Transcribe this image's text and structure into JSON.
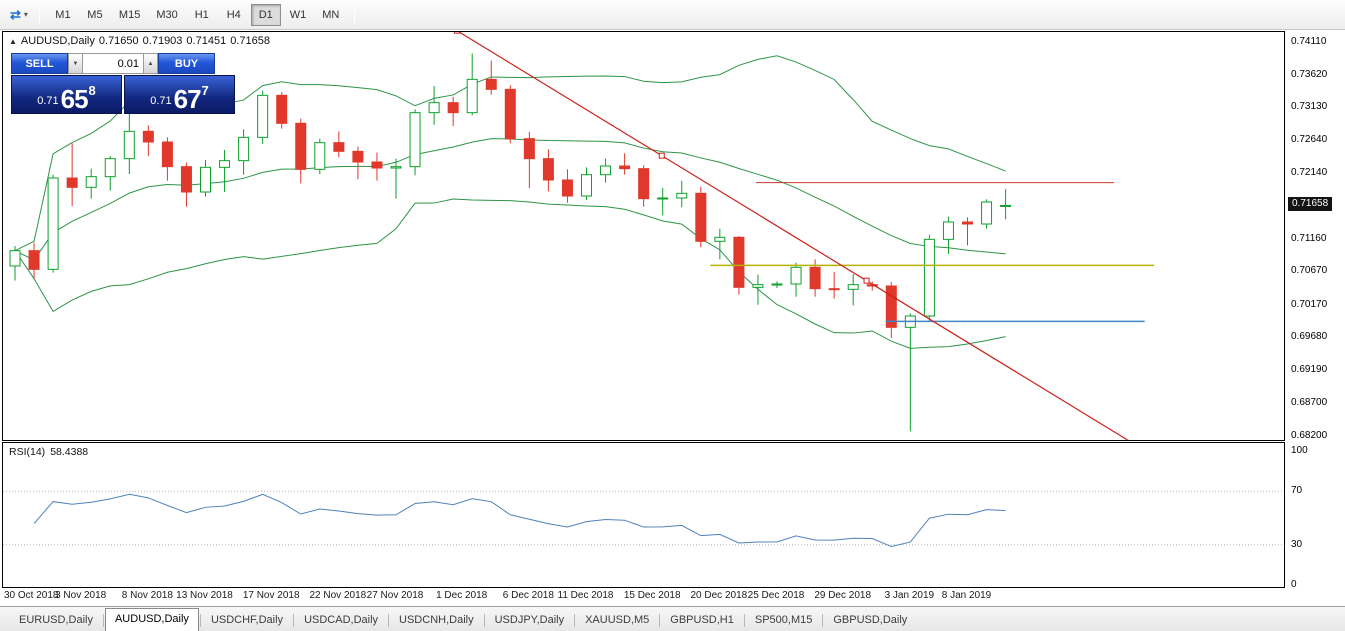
{
  "toolbar": {
    "timeframes": [
      {
        "label": "M1",
        "active": false
      },
      {
        "label": "M5",
        "active": false
      },
      {
        "label": "M15",
        "active": false
      },
      {
        "label": "M30",
        "active": false
      },
      {
        "label": "H1",
        "active": false
      },
      {
        "label": "H4",
        "active": false
      },
      {
        "label": "D1",
        "active": true
      },
      {
        "label": "W1",
        "active": false
      },
      {
        "label": "MN",
        "active": false
      }
    ]
  },
  "chart": {
    "title": {
      "symbol": "AUDUSD,Daily",
      "open": "0.71650",
      "high": "0.71903",
      "low": "0.71451",
      "close": "0.71658"
    },
    "trade_panel": {
      "sell_label": "SELL",
      "buy_label": "BUY",
      "volume": "0.01",
      "sell_price": {
        "prefix": "0.71",
        "big": "65",
        "sup": "8"
      },
      "buy_price": {
        "prefix": "0.71",
        "big": "67",
        "sup": "7"
      }
    },
    "price_badge": "0.71658",
    "scale_labels": [
      "0.74110",
      "0.73620",
      "0.73130",
      "0.72640",
      "0.72140",
      "0.71650",
      "0.71160",
      "0.70670",
      "0.70170",
      "0.69680",
      "0.69190",
      "0.68700",
      "0.68200"
    ]
  },
  "rsi": {
    "label": "RSI(14)",
    "value": "58.4388",
    "scale": [
      "100",
      "70",
      "30",
      "0"
    ]
  },
  "tabs": [
    {
      "label": "EURUSD,Daily",
      "active": false
    },
    {
      "label": "AUDUSD,Daily",
      "active": true
    },
    {
      "label": "USDCHF,Daily",
      "active": false
    },
    {
      "label": "USDCAD,Daily",
      "active": false
    },
    {
      "label": "USDCNH,Daily",
      "active": false
    },
    {
      "label": "USDJPY,Daily",
      "active": false
    },
    {
      "label": "XAUUSD,M5",
      "active": false
    },
    {
      "label": "GBPUSD,H1",
      "active": false
    },
    {
      "label": "SP500,M15",
      "active": false
    },
    {
      "label": "GBPUSD,Daily",
      "active": false
    }
  ],
  "chart_data": {
    "type": "candlestick",
    "title": "AUDUSD,Daily",
    "ylim": [
      0.682,
      0.7411
    ],
    "last_price": 0.71658,
    "colors": {
      "up": "#0ca02c",
      "down": "#e0382a",
      "bollinger": "#2e9448",
      "rsi": "#4f81bd"
    },
    "candles": {
      "columns": [
        "date",
        "open",
        "high",
        "low",
        "close"
      ],
      "rows": [
        [
          "30 Oct 2018",
          0.7075,
          0.7105,
          0.7053,
          0.7098
        ],
        [
          "31 Oct 2018",
          0.7098,
          0.711,
          0.7056,
          0.707
        ],
        [
          "1 Nov 2018",
          0.707,
          0.7212,
          0.7065,
          0.7207
        ],
        [
          "2 Nov 2018",
          0.7207,
          0.7259,
          0.7165,
          0.7193
        ],
        [
          "5 Nov 2018",
          0.7193,
          0.7221,
          0.7176,
          0.7209
        ],
        [
          "6 Nov 2018",
          0.7209,
          0.724,
          0.7188,
          0.7236
        ],
        [
          "7 Nov 2018",
          0.7236,
          0.7303,
          0.7213,
          0.7277
        ],
        [
          "8 Nov 2018",
          0.7277,
          0.7286,
          0.724,
          0.7261
        ],
        [
          "9 Nov 2018",
          0.7261,
          0.7268,
          0.7203,
          0.7224
        ],
        [
          "12 Nov 2018",
          0.7224,
          0.723,
          0.7164,
          0.7186
        ],
        [
          "13 Nov 2018",
          0.7186,
          0.7234,
          0.7179,
          0.7223
        ],
        [
          "14 Nov 2018",
          0.7223,
          0.7249,
          0.7186,
          0.7233
        ],
        [
          "15 Nov 2018",
          0.7233,
          0.728,
          0.7212,
          0.7268
        ],
        [
          "16 Nov 2018",
          0.7268,
          0.7338,
          0.7258,
          0.7331
        ],
        [
          "19 Nov 2018",
          0.7331,
          0.7336,
          0.7281,
          0.7289
        ],
        [
          "20 Nov 2018",
          0.7289,
          0.7296,
          0.7199,
          0.722
        ],
        [
          "21 Nov 2018",
          0.722,
          0.7266,
          0.7213,
          0.726
        ],
        [
          "22 Nov 2018",
          0.726,
          0.7277,
          0.7238,
          0.7247
        ],
        [
          "23 Nov 2018",
          0.7247,
          0.7254,
          0.7205,
          0.7231
        ],
        [
          "26 Nov 2018",
          0.7231,
          0.7245,
          0.7203,
          0.7222
        ],
        [
          "27 Nov 2018",
          0.7222,
          0.7236,
          0.7176,
          0.7224
        ],
        [
          "28 Nov 2018",
          0.7224,
          0.731,
          0.7211,
          0.7305
        ],
        [
          "29 Nov 2018",
          0.7305,
          0.7345,
          0.7287,
          0.732
        ],
        [
          "30 Nov 2018",
          0.732,
          0.7329,
          0.7285,
          0.7305
        ],
        [
          "3 Dec 2018",
          0.7305,
          0.7394,
          0.7301,
          0.7355
        ],
        [
          "4 Dec 2018",
          0.7355,
          0.7383,
          0.7332,
          0.734
        ],
        [
          "5 Dec 2018",
          0.734,
          0.7346,
          0.7259,
          0.7266
        ],
        [
          "6 Dec 2018",
          0.7266,
          0.7276,
          0.7192,
          0.7236
        ],
        [
          "7 Dec 2018",
          0.7236,
          0.725,
          0.7187,
          0.7204
        ],
        [
          "10 Dec 2018",
          0.7204,
          0.722,
          0.717,
          0.718
        ],
        [
          "11 Dec 2018",
          0.718,
          0.7223,
          0.7174,
          0.7212
        ],
        [
          "12 Dec 2018",
          0.7212,
          0.7236,
          0.72,
          0.7225
        ],
        [
          "13 Dec 2018",
          0.7225,
          0.7244,
          0.7212,
          0.7221
        ],
        [
          "14 Dec 2018",
          0.7221,
          0.7226,
          0.7164,
          0.7176
        ],
        [
          "17 Dec 2018",
          0.7176,
          0.7192,
          0.7151,
          0.7177
        ],
        [
          "18 Dec 2018",
          0.7177,
          0.7203,
          0.7163,
          0.7184
        ],
        [
          "19 Dec 2018",
          0.7184,
          0.7194,
          0.7103,
          0.7112
        ],
        [
          "20 Dec 2018",
          0.7112,
          0.7131,
          0.7085,
          0.7118
        ],
        [
          "21 Dec 2018",
          0.7118,
          0.712,
          0.7032,
          0.7043
        ],
        [
          "24 Dec 2018",
          0.7043,
          0.7062,
          0.7017,
          0.7047
        ],
        [
          "25 Dec 2018",
          0.7047,
          0.7052,
          0.7042,
          0.7048
        ],
        [
          "26 Dec 2018",
          0.7048,
          0.708,
          0.7029,
          0.7073
        ],
        [
          "27 Dec 2018",
          0.7073,
          0.7085,
          0.7029,
          0.7041
        ],
        [
          "28 Dec 2018",
          0.7041,
          0.7066,
          0.7026,
          0.704
        ],
        [
          "31 Dec 2018",
          0.704,
          0.7063,
          0.7016,
          0.7047
        ],
        [
          "1 Jan 2019",
          0.7047,
          0.7052,
          0.7038,
          0.7045
        ],
        [
          "2 Jan 2019",
          0.7045,
          0.7051,
          0.6967,
          0.6983
        ],
        [
          "3 Jan 2019",
          0.6983,
          0.7004,
          0.6827,
          0.7
        ],
        [
          "4 Jan 2019",
          0.7,
          0.7122,
          0.6993,
          0.7115
        ],
        [
          "7 Jan 2019",
          0.7115,
          0.7149,
          0.7093,
          0.7141
        ],
        [
          "8 Jan 2019",
          0.7141,
          0.7148,
          0.7106,
          0.7138
        ],
        [
          "9 Jan 2019",
          0.7138,
          0.7175,
          0.7131,
          0.7171
        ],
        [
          "10 Jan 2019",
          0.7165,
          0.71903,
          0.71451,
          0.71658
        ]
      ]
    },
    "gridlines": [
      {
        "label": "30 Oct 2018",
        "bar": 0
      },
      {
        "label": "3 Nov 2018",
        "bar": 3.5
      },
      {
        "label": "8 Nov 2018",
        "bar": 7
      },
      {
        "label": "13 Nov 2018",
        "bar": 10
      },
      {
        "label": "17 Nov 2018",
        "bar": 13.5
      },
      {
        "label": "22 Nov 2018",
        "bar": 17
      },
      {
        "label": "27 Nov 2018",
        "bar": 20
      },
      {
        "label": "1 Dec 2018",
        "bar": 23.5
      },
      {
        "label": "6 Dec 2018",
        "bar": 27
      },
      {
        "label": "11 Dec 2018",
        "bar": 30
      },
      {
        "label": "15 Dec 2018",
        "bar": 33.5
      },
      {
        "label": "20 Dec 2018",
        "bar": 37
      },
      {
        "label": "25 Dec 2018",
        "bar": 40
      },
      {
        "label": "29 Dec 2018",
        "bar": 43.5
      },
      {
        "label": "3 Jan 2019",
        "bar": 47
      },
      {
        "label": "8 Jan 2019",
        "bar": 50
      }
    ],
    "indicators": {
      "bollinger": {
        "period": 20,
        "deviation": 2
      },
      "rsi": {
        "period": 14,
        "current": 58.4388,
        "levels": [
          70,
          30
        ],
        "range": [
          0,
          100
        ]
      }
    },
    "annotations": {
      "trendline": {
        "color": "#cc2219",
        "bar1": 23.2,
        "price1": 0.7428,
        "bar2": 44.7,
        "price2": 0.7053,
        "ray": true
      },
      "hlines": [
        {
          "color": "#c83a2e",
          "price": 0.72,
          "bar1": 38.9,
          "bar2": 57.7,
          "width": 1
        },
        {
          "color": "#b6b000",
          "price": 0.7076,
          "bar1": 36.5,
          "bar2": 59.8,
          "width": 1.5
        },
        {
          "color": "#3f85c6",
          "price": 0.6992,
          "bar1": 45.7,
          "bar2": 59.3,
          "width": 1.5
        }
      ]
    }
  }
}
